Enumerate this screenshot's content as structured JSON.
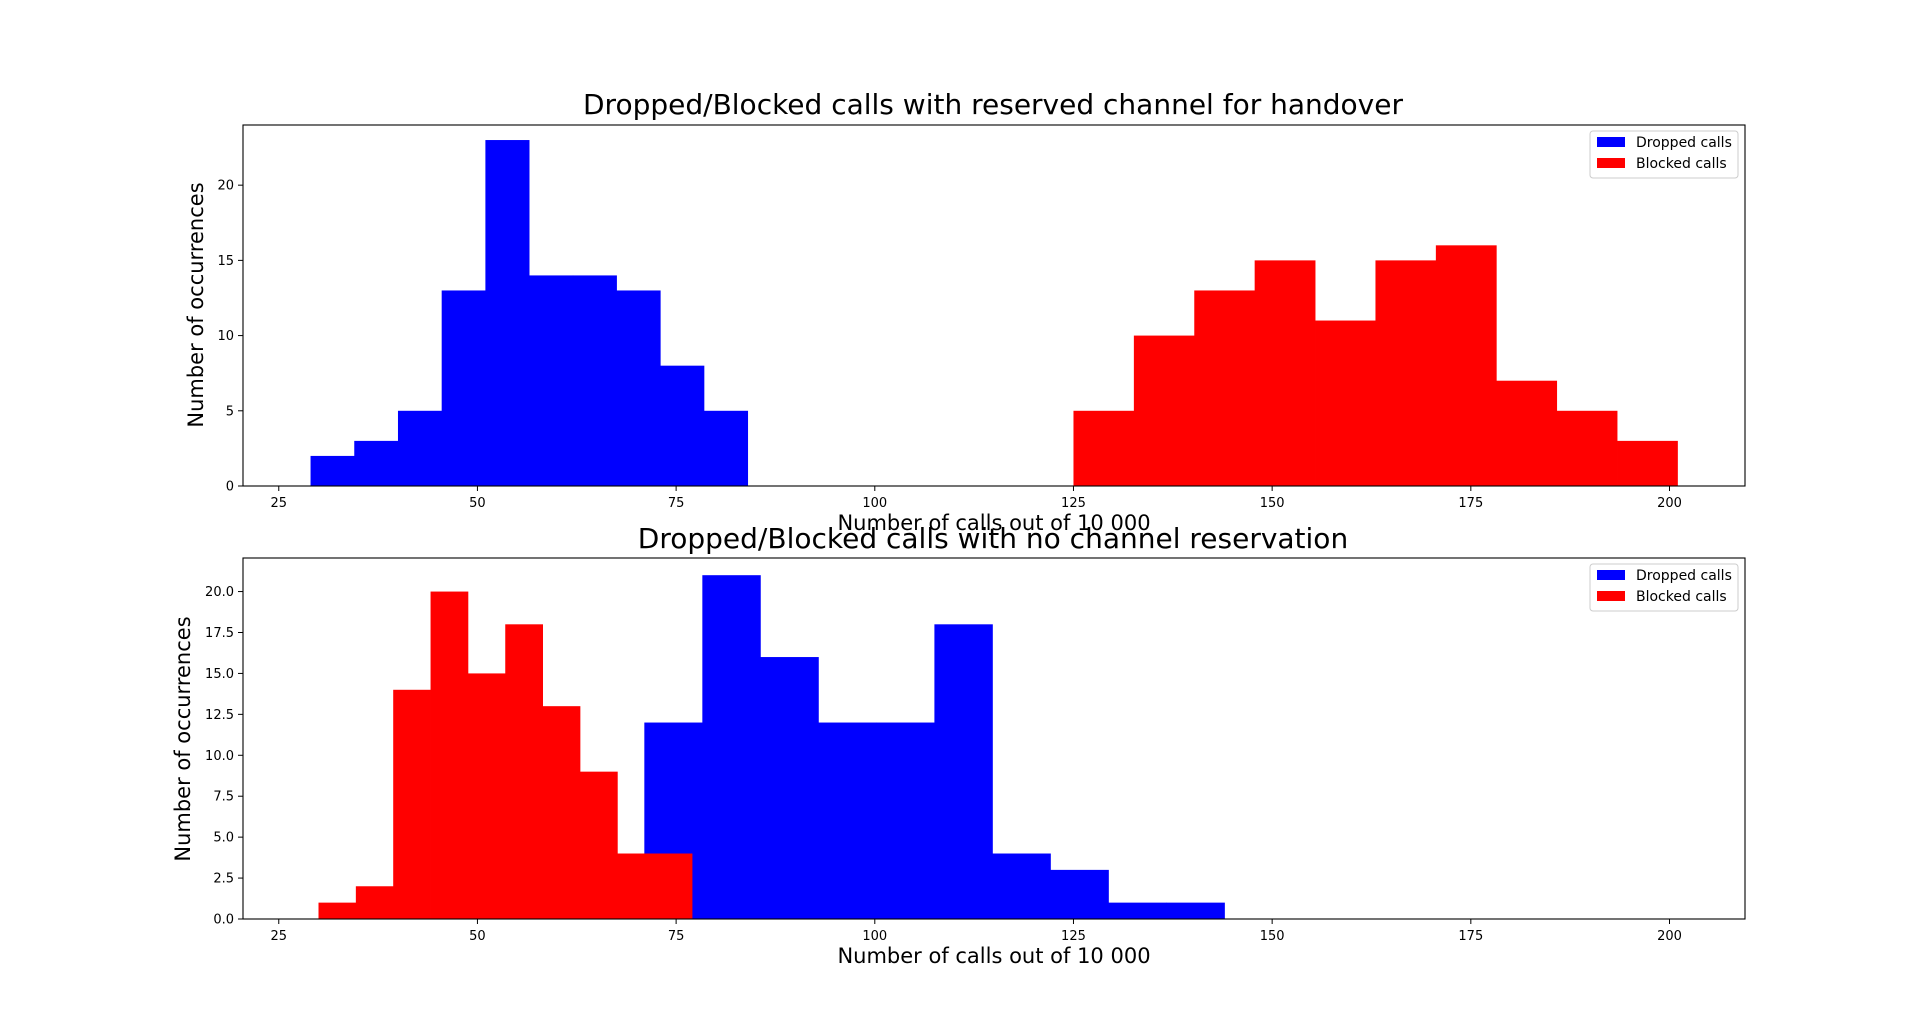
{
  "chart_data": [
    {
      "type": "histogram",
      "title": "Dropped/Blocked calls with reserved channel for handover",
      "xlabel": "Number of calls out of 10 000",
      "ylabel": "Number of occurrences",
      "xlim": [
        20.5,
        209.5
      ],
      "ylim": [
        0,
        24
      ],
      "xticks": [
        25,
        50,
        75,
        100,
        125,
        150,
        175,
        200
      ],
      "yticks": [
        0,
        5,
        10,
        15,
        20
      ],
      "grid": false,
      "legend": {
        "placement": "top-right",
        "entries": [
          "Dropped calls",
          "Blocked calls"
        ]
      },
      "series": [
        {
          "name": "Dropped calls",
          "color": "#0000ff",
          "bin_edges": [
            29.0,
            34.5,
            40.0,
            45.5,
            51.0,
            56.5,
            62.0,
            67.5,
            73.0,
            78.5,
            84.0
          ],
          "counts": [
            2,
            3,
            5,
            13,
            23,
            14,
            14,
            13,
            8,
            5
          ]
        },
        {
          "name": "Blocked calls",
          "color": "#ff0000",
          "bin_edges": [
            125.0,
            132.6,
            140.2,
            147.8,
            155.4,
            163.0,
            170.6,
            178.2,
            185.8,
            193.4,
            201.0
          ],
          "counts": [
            5,
            10,
            13,
            15,
            11,
            15,
            16,
            7,
            5,
            3
          ]
        }
      ]
    },
    {
      "type": "histogram",
      "title": "Dropped/Blocked calls with no channel reservation",
      "xlabel": "Number of calls out of 10 000",
      "ylabel": "Number of occurrences",
      "xlim": [
        20.5,
        209.5
      ],
      "ylim": [
        0,
        22.05
      ],
      "xticks": [
        25,
        50,
        75,
        100,
        125,
        150,
        175,
        200
      ],
      "yticks": [
        0.0,
        2.5,
        5.0,
        7.5,
        10.0,
        12.5,
        15.0,
        17.5,
        20.0
      ],
      "grid": false,
      "legend": {
        "placement": "top-right",
        "entries": [
          "Dropped calls",
          "Blocked calls"
        ]
      },
      "series": [
        {
          "name": "Dropped calls",
          "color": "#0000ff",
          "bin_edges": [
            71.0,
            78.3,
            85.6,
            92.9,
            100.2,
            107.5,
            114.8,
            122.1,
            129.4,
            136.7,
            144.0
          ],
          "counts": [
            12,
            21,
            16,
            12,
            12,
            18,
            4,
            3,
            1,
            1
          ]
        },
        {
          "name": "Blocked calls",
          "color": "#ff0000",
          "bin_edges": [
            30.0,
            34.7,
            39.4,
            44.1,
            48.8,
            53.5,
            58.2,
            62.9,
            67.6,
            72.3,
            77.0
          ],
          "counts": [
            1,
            2,
            14,
            20,
            15,
            18,
            13,
            9,
            4,
            4
          ]
        }
      ]
    }
  ]
}
